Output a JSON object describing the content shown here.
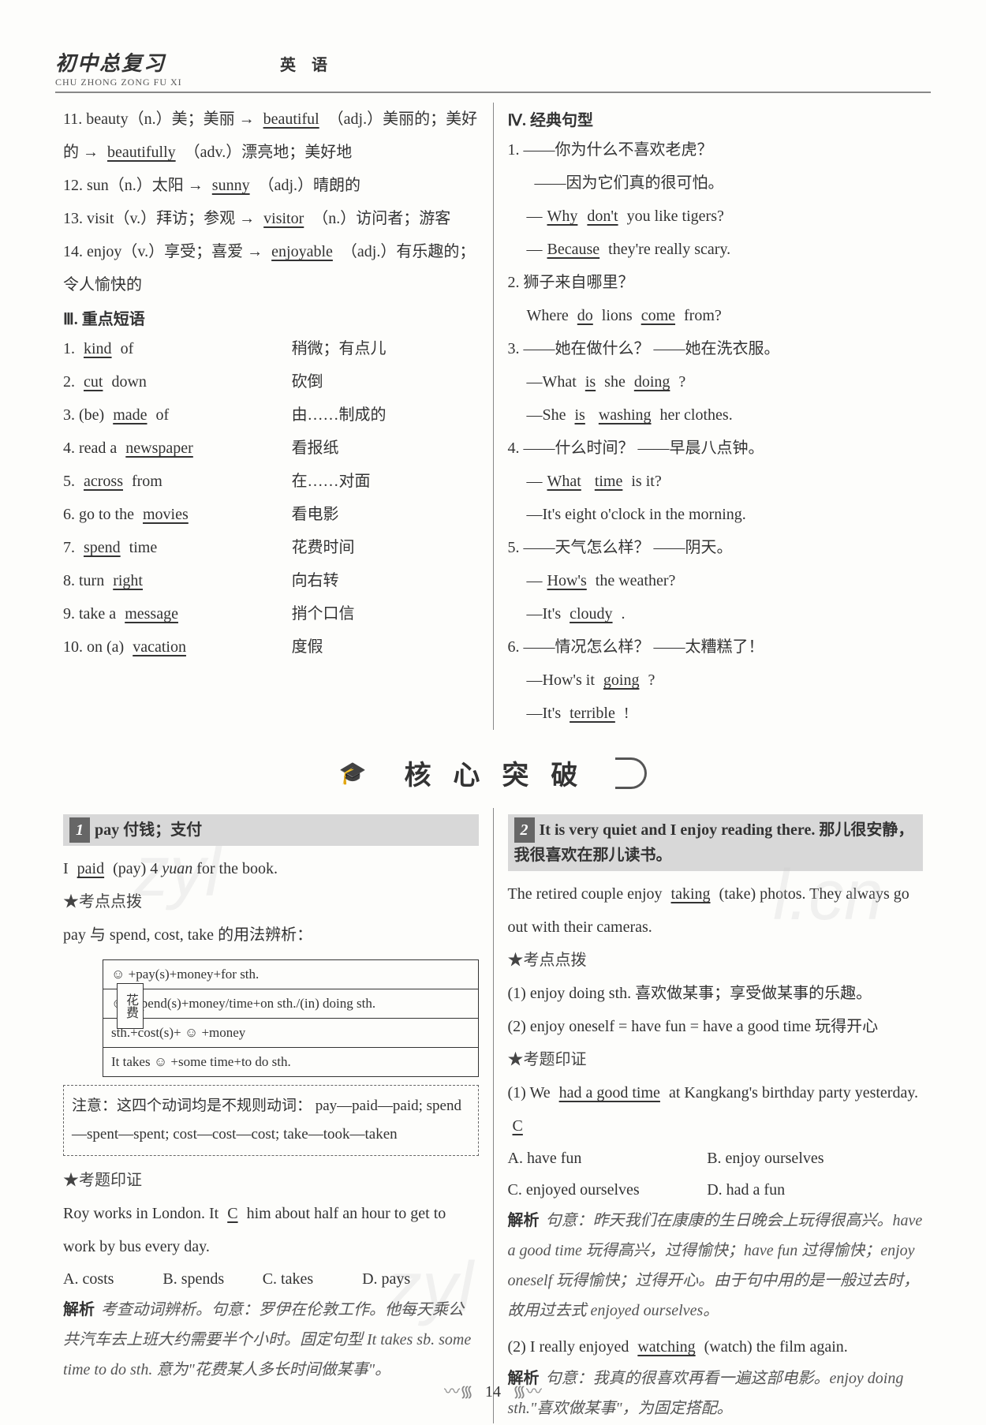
{
  "header": {
    "title_cn": "初中总复习",
    "title_py": "CHU ZHONG ZONG FU XI",
    "subject": "英语"
  },
  "vocab": [
    {
      "n": "11.",
      "text_a": "beauty（n.）美；美丽 →",
      "u1": "beautiful",
      "text_b": "（adj.）美丽的；美好的 →",
      "u2": "beautifully",
      "text_c": "（adv.）漂亮地；美好地"
    },
    {
      "n": "12.",
      "text_a": "sun（n.）太阳 →",
      "u1": "sunny",
      "text_b": "（adj.）晴朗的",
      "u2": "",
      "text_c": ""
    },
    {
      "n": "13.",
      "text_a": "visit（v.）拜访；参观 →",
      "u1": "visitor",
      "text_b": "（n.）访问者；游客",
      "u2": "",
      "text_c": ""
    },
    {
      "n": "14.",
      "text_a": "enjoy（v.）享受；喜爱 →",
      "u1": "enjoyable",
      "text_b": "（adj.）有乐趣的；令人愉快的",
      "u2": "",
      "text_c": ""
    }
  ],
  "sec3_title": "Ⅲ. 重点短语",
  "phrases": [
    {
      "n": "1.",
      "l_a": "",
      "u1": "kind",
      "l_b": " of",
      "r": "稍微；有点儿"
    },
    {
      "n": "2.",
      "l_a": "",
      "u1": "cut",
      "l_b": " down",
      "r": "砍倒"
    },
    {
      "n": "3.",
      "l_a": "(be) ",
      "u1": "made",
      "l_b": " of",
      "r": "由……制成的"
    },
    {
      "n": "4.",
      "l_a": "read a ",
      "u1": "newspaper",
      "l_b": "",
      "r": "看报纸"
    },
    {
      "n": "5.",
      "l_a": "",
      "u1": "across",
      "l_b": " from",
      "r": "在……对面"
    },
    {
      "n": "6.",
      "l_a": "go to the ",
      "u1": "movies",
      "l_b": "",
      "r": "看电影"
    },
    {
      "n": "7.",
      "l_a": "",
      "u1": "spend",
      "l_b": " time",
      "r": "花费时间"
    },
    {
      "n": "8.",
      "l_a": "turn ",
      "u1": "right",
      "l_b": "",
      "r": "向右转"
    },
    {
      "n": "9.",
      "l_a": "take a ",
      "u1": "message",
      "l_b": "",
      "r": "捎个口信"
    },
    {
      "n": "10.",
      "l_a": "on (a) ",
      "u1": "vacation",
      "l_b": "",
      "r": "度假"
    }
  ],
  "sec4_title": "Ⅳ. 经典句型",
  "sentences": [
    {
      "n": "1.",
      "q_cn": "——你为什么不喜欢老虎？",
      "a_cn": "——因为它们真的很可怕。",
      "q_en": [
        {
          "t": "—",
          "u": false
        },
        {
          "t": "Why",
          "u": true
        },
        {
          "t": "don't",
          "u": true
        },
        {
          "t": " you like tigers?",
          "u": false
        }
      ],
      "a_en": [
        {
          "t": "—",
          "u": false
        },
        {
          "t": "Because",
          "u": true
        },
        {
          "t": " they're really scary.",
          "u": false
        }
      ]
    },
    {
      "n": "2.",
      "q_cn": "狮子来自哪里？",
      "a_cn": "",
      "q_en": [
        {
          "t": "Where ",
          "u": false
        },
        {
          "t": "do",
          "u": true
        },
        {
          "t": " lions ",
          "u": false
        },
        {
          "t": "come",
          "u": true
        },
        {
          "t": " from?",
          "u": false
        }
      ],
      "a_en": []
    },
    {
      "n": "3.",
      "q_cn": "——她在做什么？ ——她在洗衣服。",
      "a_cn": "",
      "q_en": [
        {
          "t": "—What ",
          "u": false
        },
        {
          "t": "is",
          "u": true
        },
        {
          "t": " she ",
          "u": false
        },
        {
          "t": "doing",
          "u": true
        },
        {
          "t": " ?",
          "u": false
        }
      ],
      "a_en": [
        {
          "t": "—She ",
          "u": false
        },
        {
          "t": "is",
          "u": true
        },
        {
          "t": " ",
          "u": false
        },
        {
          "t": "washing",
          "u": true
        },
        {
          "t": " her clothes.",
          "u": false
        }
      ]
    },
    {
      "n": "4.",
      "q_cn": "——什么时间？ ——早晨八点钟。",
      "a_cn": "",
      "q_en": [
        {
          "t": "—",
          "u": false
        },
        {
          "t": "What",
          "u": true
        },
        {
          "t": " ",
          "u": false
        },
        {
          "t": "time",
          "u": true
        },
        {
          "t": " is it?",
          "u": false
        }
      ],
      "a_en": [
        {
          "t": "—It's eight o'clock in the morning.",
          "u": false
        }
      ]
    },
    {
      "n": "5.",
      "q_cn": "——天气怎么样？ ——阴天。",
      "a_cn": "",
      "q_en": [
        {
          "t": "—",
          "u": false
        },
        {
          "t": "How's",
          "u": true
        },
        {
          "t": " the weather?",
          "u": false
        }
      ],
      "a_en": [
        {
          "t": "—It's ",
          "u": false
        },
        {
          "t": "cloudy",
          "u": true
        },
        {
          "t": " .",
          "u": false
        }
      ]
    },
    {
      "n": "6.",
      "q_cn": "——情况怎么样？ ——太糟糕了！",
      "a_cn": "",
      "q_en": [
        {
          "t": "—How's it ",
          "u": false
        },
        {
          "t": "going",
          "u": true
        },
        {
          "t": " ?",
          "u": false
        }
      ],
      "a_en": [
        {
          "t": "—It's ",
          "u": false
        },
        {
          "t": "terrible",
          "u": true
        },
        {
          "t": " !",
          "u": false
        }
      ]
    }
  ],
  "banner": "核心突破",
  "topic1": {
    "num": "1",
    "head": "pay 付钱；支付",
    "ex": [
      {
        "t": "I ",
        "u": false
      },
      {
        "t": "paid",
        "u": true
      },
      {
        "t": " (pay) 4 ",
        "u": false
      },
      {
        "t": "yuan",
        "u": false,
        "i": true
      },
      {
        "t": " for the book.",
        "u": false
      }
    ],
    "tip1_label": "★考点点拨",
    "tip1": "pay 与 spend, cost, take 的用法辨析：",
    "diagram_label": "花费",
    "diagram": [
      "☺ +pay(s)+money+for sth.",
      "☺ +spend(s)+money/time+on sth./(in) doing sth.",
      "sth.+cost(s)+ ☺ +money",
      "It takes ☺ +some time+to do sth."
    ],
    "note": "注意：这四个动词均是不规则动词：\npay—paid—paid; spend—spent—spent;\ncost—cost—cost; take—took—taken",
    "tip2_label": "★考题印证",
    "q": [
      {
        "t": "Roy works in London. It ",
        "u": false
      },
      {
        "t": "C",
        "u": true
      },
      {
        "t": " him about half an hour to get to work by bus every day.",
        "u": false
      }
    ],
    "opts": [
      "A. costs",
      "B. spends",
      "C. takes",
      "D. pays"
    ],
    "analysis_label": "解析",
    "analysis": "考查动词辨析。句意：罗伊在伦敦工作。他每天乘公共汽车去上班大约需要半个小时。固定句型 It takes sb. some time to do sth. 意为\"花费某人多长时间做某事\"。"
  },
  "topic2": {
    "num": "2",
    "head": "It is very quiet and I enjoy reading there. 那儿很安静，我很喜欢在那儿读书。",
    "ex": [
      {
        "t": "The retired couple enjoy ",
        "u": false
      },
      {
        "t": "taking",
        "u": true
      },
      {
        "t": " (take) photos. They always go out with their cameras.",
        "u": false
      }
    ],
    "tip1_label": "★考点点拨",
    "tips": [
      "(1) enjoy doing sth. 喜欢做某事；享受做某事的乐趣。",
      "(2) enjoy oneself = have fun = have a good time 玩得开心"
    ],
    "tip2_label": "★考题印证",
    "q1": [
      {
        "t": "(1) We ",
        "u": false
      },
      {
        "t": "had a good time",
        "u": true
      },
      {
        "t": " at Kangkang's birthday party yesterday. ",
        "u": false
      },
      {
        "t": "C",
        "u": true
      }
    ],
    "q1_opts": [
      "A. have fun",
      "B. enjoy ourselves",
      "C. enjoyed ourselves",
      "D. had a fun"
    ],
    "analysis1_label": "解析",
    "analysis1": "句意：昨天我们在康康的生日晚会上玩得很高兴。have a good time 玩得高兴，过得愉快；have fun 过得愉快；enjoy oneself 玩得愉快；过得开心。由于句中用的是一般过去时，故用过去式 enjoyed ourselves。",
    "q2": [
      {
        "t": "(2) I really enjoyed ",
        "u": false
      },
      {
        "t": "watching",
        "u": true
      },
      {
        "t": " (watch) the film again.",
        "u": false
      }
    ],
    "analysis2_label": "解析",
    "analysis2": "句意：我真的很喜欢再看一遍这部电影。enjoy doing sth.\"喜欢做某事\"，为固定搭配。"
  },
  "page_num": "14",
  "watermarks": {
    "w1": "zyl",
    "w2": "l.cn"
  }
}
